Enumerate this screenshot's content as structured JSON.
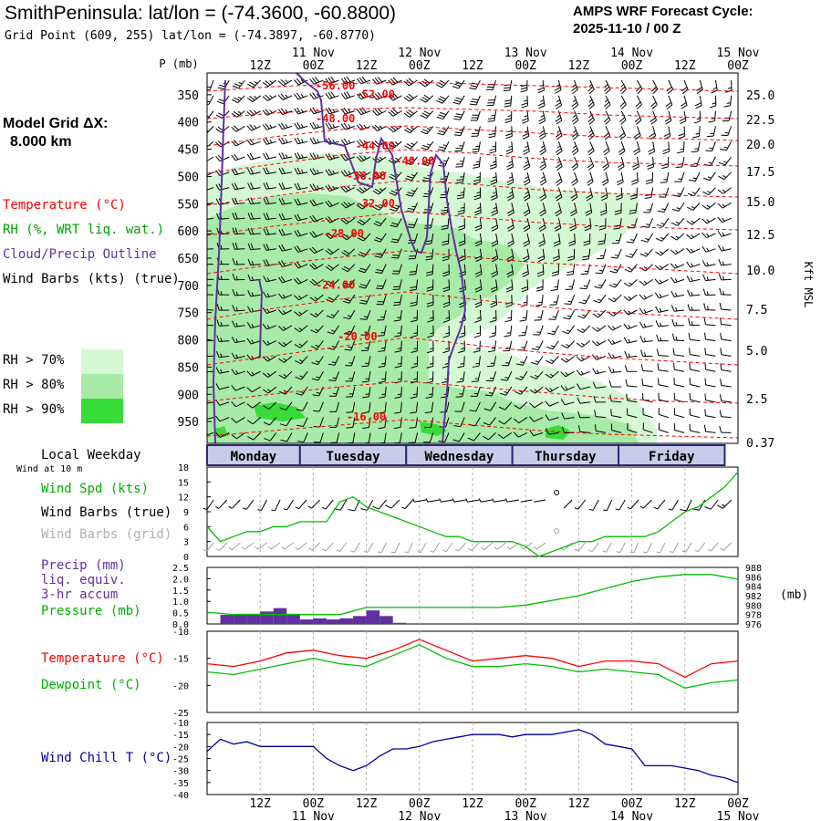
{
  "header": {
    "title": "SmithPeninsula:  lat/lon = (-74.3600, -60.8800)",
    "grid_point": "Grid Point (609, 255) lat/lon = (-74.3897, -60.8770)",
    "cycle_line1": "AMPS WRF Forecast Cycle:",
    "cycle_line2": "2025-11-10 / 00  Z",
    "model_grid_line1": "Model Grid ΔX:",
    "model_grid_line2": "8.000 km"
  },
  "colors": {
    "temperature": "#ff0000",
    "rh": "#00a000",
    "cloud_outline": "#6030a0",
    "wind_barbs": "#000000",
    "grid_barbs": "#a0a0a0",
    "precip": "#6030a0",
    "pressure": "#00c000",
    "dewpoint": "#00c000",
    "wind_chill": "#0000a0",
    "rh70": "#d4f8d4",
    "rh80": "#a8eaa8",
    "rh90": "#38dc38"
  },
  "legend": {
    "temperature": "Temperature (°C)",
    "rh": "RH (%, WRT liq. wat.)",
    "cloud": "Cloud/Precip Outline",
    "barbs": "Wind Barbs (kts) (true)",
    "rh70": "RH > 70%",
    "rh80": "RH > 80%",
    "rh90": "RH > 90%"
  },
  "time_axis": {
    "hour_labels": [
      "12Z",
      "00Z",
      "12Z",
      "00Z",
      "12Z",
      "00Z",
      "12Z",
      "00Z",
      "12Z",
      "00Z"
    ],
    "date_labels": [
      "11 Nov",
      "12 Nov",
      "13 Nov",
      "14 Nov",
      "15 Nov"
    ],
    "weekdays": [
      "Monday",
      "Tuesday",
      "Wednesday",
      "Thursday",
      "Friday"
    ]
  },
  "chart_data": [
    {
      "type": "heatmap",
      "title": "Vertical cross-section (time-height)",
      "ylabel": "P (mb)",
      "ylabel_right": "Kft MSL",
      "p_ticks": [
        350,
        400,
        450,
        500,
        550,
        600,
        650,
        700,
        750,
        800,
        850,
        900,
        950
      ],
      "kft_ticks": [
        "25.0",
        "22.5",
        "20.0",
        "17.5",
        "15.0",
        "12.5",
        "10.0",
        "7.5",
        "5.0",
        "2.5",
        "0.37"
      ],
      "p_range": [
        310,
        990
      ],
      "x_range_hours": [
        0,
        120
      ],
      "isotherm_labels": [
        {
          "label": "-56.00",
          "t": 29,
          "p": 332
        },
        {
          "label": "-52.00",
          "t": 38,
          "p": 348
        },
        {
          "label": "-48.00",
          "t": 29,
          "p": 392
        },
        {
          "label": "-44.00",
          "t": 38,
          "p": 442
        },
        {
          "label": "-40.00",
          "t": 47,
          "p": 470
        },
        {
          "label": "-36.00",
          "t": 36,
          "p": 498
        },
        {
          "label": "-32.00",
          "t": 38,
          "p": 548
        },
        {
          "label": "-28.00",
          "t": 31,
          "p": 603
        },
        {
          "label": "-24.00",
          "t": 29,
          "p": 698
        },
        {
          "label": "-20.00",
          "t": 34,
          "p": 792
        },
        {
          "label": "-16.00",
          "t": 36,
          "p": 940
        }
      ]
    },
    {
      "type": "line",
      "title": "10 m wind",
      "labels": [
        "Local Weekday",
        "Wind at 10 m",
        "Wind Spd (kts)",
        "Wind Barbs (true)",
        "Wind Barbs (grid)"
      ],
      "y_ticks": [
        0,
        3,
        6,
        9,
        12,
        15,
        18
      ],
      "ylim": [
        0,
        18
      ],
      "x": [
        0,
        3,
        6,
        9,
        12,
        15,
        18,
        21,
        24,
        27,
        30,
        33,
        36,
        39,
        42,
        45,
        48,
        51,
        54,
        57,
        60,
        63,
        66,
        69,
        72,
        75,
        78,
        81,
        84,
        87,
        90,
        93,
        96,
        99,
        102,
        105,
        108,
        111,
        114,
        117,
        120
      ],
      "series": [
        {
          "name": "Wind Spd (kts)",
          "values": [
            6,
            3,
            4,
            5,
            5,
            6,
            6,
            7,
            7,
            7,
            11,
            12,
            10,
            9,
            8,
            7,
            6,
            5,
            4,
            4,
            3,
            3,
            3,
            3,
            2,
            0,
            1,
            2,
            3,
            3,
            4,
            4,
            4,
            4,
            5,
            7,
            9,
            10,
            12,
            14,
            17
          ]
        },
        {
          "name": "Wind Barbs (grid) speed",
          "values": [
            5,
            5,
            5,
            5,
            5,
            5,
            5,
            5,
            5,
            5,
            5,
            5,
            5,
            5,
            5,
            5,
            5,
            5,
            5,
            5,
            5,
            5,
            5,
            5,
            5,
            5,
            5,
            5,
            5,
            5,
            5,
            5,
            5,
            5,
            5,
            5,
            5,
            5,
            5,
            5,
            5
          ]
        }
      ]
    },
    {
      "type": "bar",
      "title": "Precip and pressure",
      "labels": [
        "Precip (mm)",
        "liq. equiv.",
        "3-hr accum",
        "Pressure (mb)"
      ],
      "y_ticks": [
        0.0,
        0.5,
        1.0,
        1.5,
        2.0,
        2.5
      ],
      "y_tick_labels": [
        "0.0",
        "0.5",
        "1.0",
        "1.5",
        "2.0",
        "2.5"
      ],
      "ylim": [
        0,
        2.5
      ],
      "y2_ticks": [
        976,
        978,
        980,
        982,
        984,
        986,
        988
      ],
      "y2lim": [
        976,
        988
      ],
      "y2_unit": "(mb)",
      "precip_bins": [
        {
          "t": 6,
          "v": 0.4
        },
        {
          "t": 9,
          "v": 0.45
        },
        {
          "t": 12,
          "v": 0.45
        },
        {
          "t": 15,
          "v": 0.55
        },
        {
          "t": 18,
          "v": 0.7
        },
        {
          "t": 21,
          "v": 0.45
        },
        {
          "t": 24,
          "v": 0.2
        },
        {
          "t": 27,
          "v": 0.25
        },
        {
          "t": 30,
          "v": 0.2
        },
        {
          "t": 33,
          "v": 0.25
        },
        {
          "t": 36,
          "v": 0.35
        },
        {
          "t": 39,
          "v": 0.6
        },
        {
          "t": 42,
          "v": 0.35
        },
        {
          "t": 45,
          "v": 0.05
        }
      ],
      "pressure_x": [
        0,
        6,
        12,
        18,
        24,
        30,
        36,
        42,
        48,
        54,
        60,
        66,
        72,
        78,
        84,
        90,
        96,
        102,
        108,
        114,
        120
      ],
      "pressure_values": [
        978.5,
        978,
        978,
        978,
        978,
        978,
        979.5,
        979.5,
        979.5,
        979.5,
        979.5,
        979.5,
        980,
        981,
        982,
        983.5,
        985,
        986,
        986.5,
        986.5,
        985.5
      ]
    },
    {
      "type": "line",
      "title": "Temperature and dewpoint",
      "labels": [
        "Temperature (°C)",
        "Dewpoint (°C)"
      ],
      "y_ticks": [
        -25,
        -20,
        -15,
        -10
      ],
      "ylim": [
        -25,
        -10
      ],
      "x": [
        0,
        6,
        12,
        18,
        24,
        30,
        36,
        42,
        48,
        54,
        60,
        66,
        72,
        78,
        84,
        90,
        96,
        102,
        108,
        114,
        120
      ],
      "series": [
        {
          "name": "Temperature (°C)",
          "values": [
            -16,
            -16.5,
            -15.5,
            -14,
            -13.5,
            -14.5,
            -15,
            -13.5,
            -11.5,
            -13.5,
            -15.5,
            -15,
            -14.5,
            -15,
            -16.5,
            -15.5,
            -15.5,
            -16,
            -18.5,
            -16,
            -15.5
          ]
        },
        {
          "name": "Dewpoint (°C)",
          "values": [
            -17.5,
            -18,
            -17,
            -16,
            -15,
            -16,
            -16.5,
            -14.5,
            -12.5,
            -15,
            -16.5,
            -16.5,
            -16,
            -16.5,
            -17.5,
            -17,
            -17.5,
            -18,
            -20.5,
            -19.5,
            -19
          ]
        }
      ]
    },
    {
      "type": "line",
      "title": "Wind chill",
      "labels": [
        "Wind Chill T (°C)"
      ],
      "y_ticks": [
        -40,
        -35,
        -30,
        -25,
        -20,
        -15,
        -10
      ],
      "ylim": [
        -40,
        -10
      ],
      "x": [
        0,
        3,
        6,
        9,
        12,
        15,
        18,
        21,
        24,
        27,
        30,
        33,
        36,
        39,
        42,
        45,
        48,
        51,
        54,
        57,
        60,
        63,
        66,
        69,
        72,
        75,
        78,
        81,
        84,
        87,
        90,
        93,
        96,
        99,
        102,
        105,
        108,
        111,
        114,
        117,
        120
      ],
      "series": [
        {
          "name": "Wind Chill T (°C)",
          "values": [
            -22,
            -17,
            -19,
            -18,
            -20,
            -20,
            -20,
            -20,
            -20,
            -25,
            -28,
            -30,
            -28,
            -24,
            -21,
            -21,
            -20,
            -18,
            -17,
            -16,
            -15,
            -15,
            -15,
            -16,
            -15,
            -15,
            -15,
            -14,
            -13,
            -15,
            -19,
            -20,
            -21,
            -28,
            -28,
            -28,
            -29,
            -30,
            -32,
            -33,
            -35
          ]
        }
      ]
    }
  ]
}
